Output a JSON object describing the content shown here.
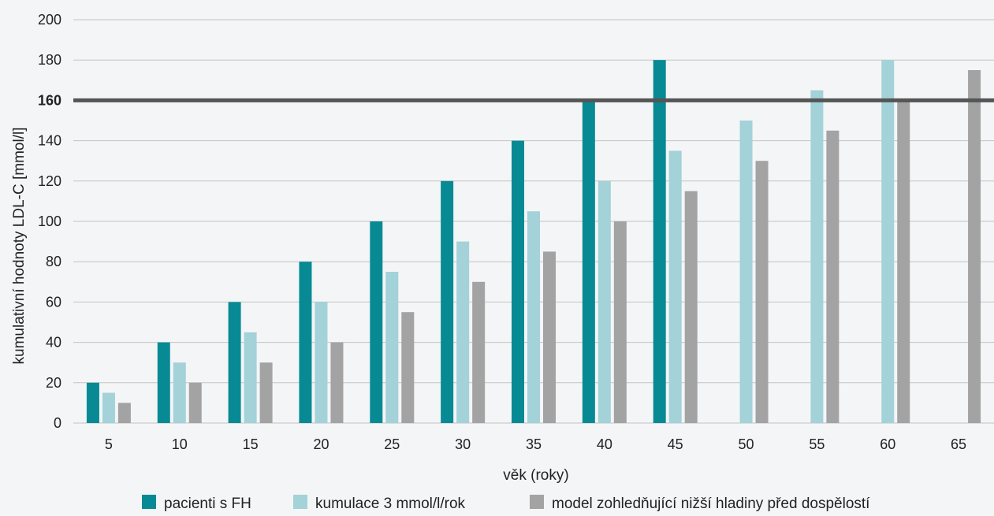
{
  "chart_data": {
    "type": "bar",
    "xlabel": "věk (roky)",
    "ylabel": "kumulativní hodnoty LDL-C [mmol/l]",
    "categories": [
      "5",
      "10",
      "15",
      "20",
      "25",
      "30",
      "35",
      "40",
      "45",
      "50",
      "55",
      "60",
      "65"
    ],
    "ylim": [
      0,
      200
    ],
    "yticks": [
      0,
      20,
      40,
      60,
      80,
      100,
      120,
      140,
      160,
      180,
      200
    ],
    "threshold": {
      "value": 160,
      "label": "160",
      "color": "#555555"
    },
    "grid": true,
    "legend_position": "bottom",
    "series": [
      {
        "name": "pacienti s FH",
        "color": "#078a93",
        "values": [
          20,
          40,
          60,
          80,
          100,
          120,
          140,
          160,
          180,
          null,
          null,
          null,
          null
        ]
      },
      {
        "name": "kumulace 3 mmol/l/rok",
        "color": "#a3d2d8",
        "values": [
          15,
          30,
          45,
          60,
          75,
          90,
          105,
          120,
          135,
          150,
          165,
          180,
          null
        ]
      },
      {
        "name": "model zohledňující nižší hladiny před dospělostí",
        "color": "#a3a3a3",
        "values": [
          10,
          20,
          30,
          40,
          55,
          70,
          85,
          100,
          115,
          130,
          145,
          160,
          175
        ]
      }
    ]
  }
}
